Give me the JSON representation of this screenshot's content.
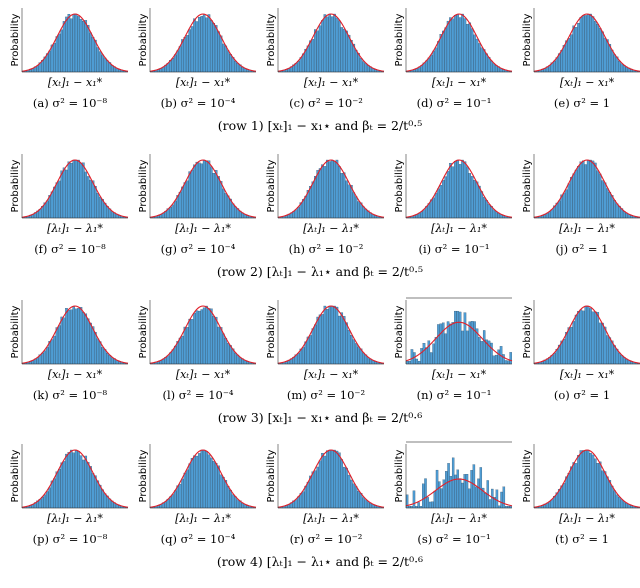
{
  "figure": {
    "ylabel": "Probability",
    "xlabels": {
      "x": "[xₜ]₁ − x₁*",
      "lambda": "[λₜ]₁ − λ₁*"
    },
    "row_captions": [
      "(row 1) [xₜ]₁ − x₁⋆ and βₜ = 2/t⁰·⁵",
      "(row 2) [λₜ]₁ − λ₁⋆ and βₜ = 2/t⁰·⁵",
      "(row 3) [xₜ]₁ − x₁⋆ and βₜ = 2/t⁰·⁶",
      "(row 4) [λₜ]₁ − λ₁⋆ and βₜ = 2/t⁰·⁶"
    ],
    "subcaptions": [
      [
        "(a)  σ² = 10⁻⁸",
        "(b)  σ² = 10⁻⁴",
        "(c)  σ² = 10⁻²",
        "(d)  σ² = 10⁻¹",
        "(e)  σ² = 1"
      ],
      [
        "(f)  σ² = 10⁻⁸",
        "(g)  σ² = 10⁻⁴",
        "(h)  σ² = 10⁻²",
        "(i)  σ² = 10⁻¹",
        "(j)  σ² = 1"
      ],
      [
        "(k)  σ² = 10⁻⁸",
        "(l)  σ² = 10⁻⁴",
        "(m)  σ² = 10⁻²",
        "(n)  σ² = 10⁻¹",
        "(o)  σ² = 1"
      ],
      [
        "(p)  σ² = 10⁻⁸",
        "(q)  σ² = 10⁻⁴",
        "(r)  σ² = 10⁻²",
        "(s)  σ² = 10⁻¹",
        "(t)  σ² = 1"
      ]
    ]
  },
  "colors": {
    "bar": "#4f9dd4",
    "bar_edge": "#1c3b55",
    "fit": "#e0202a"
  },
  "chart_data": {
    "type": "bar",
    "description_of_grid": "4 rows x 5 columns of histograms, each overlaid with a red normal-density fit curve",
    "panels": [
      {
        "id": "a",
        "row": 1,
        "variable": "x",
        "sigma2": "1e-8",
        "shape": "normal",
        "xlabel": "[x_t]_1 - x_1*",
        "ylabel": "Probability"
      },
      {
        "id": "b",
        "row": 1,
        "variable": "x",
        "sigma2": "1e-4",
        "shape": "normal",
        "xlabel": "[x_t]_1 - x_1*",
        "ylabel": "Probability"
      },
      {
        "id": "c",
        "row": 1,
        "variable": "x",
        "sigma2": "1e-2",
        "shape": "normal",
        "xlabel": "[x_t]_1 - x_1*",
        "ylabel": "Probability"
      },
      {
        "id": "d",
        "row": 1,
        "variable": "x",
        "sigma2": "1e-1",
        "shape": "normal",
        "xlabel": "[x_t]_1 - x_1*",
        "ylabel": "Probability"
      },
      {
        "id": "e",
        "row": 1,
        "variable": "x",
        "sigma2": "1",
        "shape": "normal",
        "xlabel": "[x_t]_1 - x_1*",
        "ylabel": "Probability"
      },
      {
        "id": "f",
        "row": 2,
        "variable": "lambda",
        "sigma2": "1e-8",
        "shape": "normal",
        "xlabel": "[lambda_t]_1 - lambda_1*",
        "ylabel": "Probability"
      },
      {
        "id": "g",
        "row": 2,
        "variable": "lambda",
        "sigma2": "1e-4",
        "shape": "normal",
        "xlabel": "[lambda_t]_1 - lambda_1*",
        "ylabel": "Probability"
      },
      {
        "id": "h",
        "row": 2,
        "variable": "lambda",
        "sigma2": "1e-2",
        "shape": "normal",
        "xlabel": "[lambda_t]_1 - lambda_1*",
        "ylabel": "Probability"
      },
      {
        "id": "i",
        "row": 2,
        "variable": "lambda",
        "sigma2": "1e-1",
        "shape": "normal",
        "xlabel": "[lambda_t]_1 - lambda_1*",
        "ylabel": "Probability"
      },
      {
        "id": "j",
        "row": 2,
        "variable": "lambda",
        "sigma2": "1",
        "shape": "normal",
        "xlabel": "[lambda_t]_1 - lambda_1*",
        "ylabel": "Probability"
      },
      {
        "id": "k",
        "row": 3,
        "variable": "x",
        "sigma2": "1e-8",
        "shape": "normal",
        "xlabel": "[x_t]_1 - x_1*",
        "ylabel": "Probability"
      },
      {
        "id": "l",
        "row": 3,
        "variable": "x",
        "sigma2": "1e-4",
        "shape": "normal",
        "xlabel": "[x_t]_1 - x_1*",
        "ylabel": "Probability"
      },
      {
        "id": "m",
        "row": 3,
        "variable": "x",
        "sigma2": "1e-2",
        "shape": "normal",
        "xlabel": "[x_t]_1 - x_1*",
        "ylabel": "Probability"
      },
      {
        "id": "n",
        "row": 3,
        "variable": "x",
        "sigma2": "1e-1",
        "shape": "noisy",
        "xlabel": "[x_t]_1 - x_1*",
        "ylabel": "Probability"
      },
      {
        "id": "o",
        "row": 3,
        "variable": "x",
        "sigma2": "1",
        "shape": "normal",
        "xlabel": "[x_t]_1 - x_1*",
        "ylabel": "Probability"
      },
      {
        "id": "p",
        "row": 4,
        "variable": "lambda",
        "sigma2": "1e-8",
        "shape": "normal",
        "xlabel": "[lambda_t]_1 - lambda_1*",
        "ylabel": "Probability"
      },
      {
        "id": "q",
        "row": 4,
        "variable": "lambda",
        "sigma2": "1e-4",
        "shape": "normal",
        "xlabel": "[lambda_t]_1 - lambda_1*",
        "ylabel": "Probability"
      },
      {
        "id": "r",
        "row": 4,
        "variable": "lambda",
        "sigma2": "1e-2",
        "shape": "normal",
        "xlabel": "[lambda_t]_1 - lambda_1*",
        "ylabel": "Probability"
      },
      {
        "id": "s",
        "row": 4,
        "variable": "lambda",
        "sigma2": "1e-1",
        "shape": "very_noisy",
        "xlabel": "[lambda_t]_1 - lambda_1*",
        "ylabel": "Probability"
      },
      {
        "id": "t",
        "row": 4,
        "variable": "lambda",
        "sigma2": "1",
        "shape": "normal",
        "xlabel": "[lambda_t]_1 - lambda_1*",
        "ylabel": "Probability"
      }
    ]
  }
}
